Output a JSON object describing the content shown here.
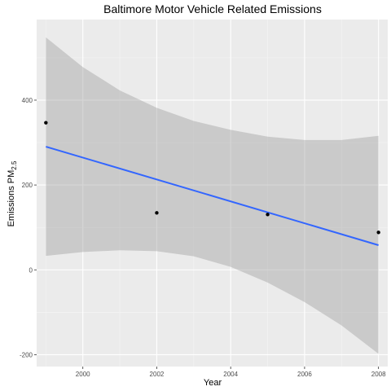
{
  "chart_data": {
    "type": "scatter",
    "title": "Baltimore Motor Vehicle Related Emissions",
    "xlabel": "Year",
    "ylabel": {
      "prefix": "Emissions PM",
      "subscript": "2.5"
    },
    "xlim": [
      1998.75,
      2008.25
    ],
    "ylim": [
      -228,
      590
    ],
    "x_ticks": [
      2000,
      2002,
      2004,
      2006,
      2008
    ],
    "y_ticks": [
      -200,
      0,
      200,
      400
    ],
    "grid": true,
    "legend": "none",
    "points": [
      {
        "x": 1999,
        "y": 346.8
      },
      {
        "x": 2002,
        "y": 134.3
      },
      {
        "x": 2005,
        "y": 130.4
      },
      {
        "x": 2008,
        "y": 88.3
      }
    ],
    "trend_line": {
      "method": "linear",
      "x": [
        1999,
        2008
      ],
      "y": [
        290.4,
        58.1
      ]
    },
    "confidence_band": [
      {
        "x": 1999,
        "lower": 33,
        "upper": 548
      },
      {
        "x": 2000,
        "lower": 42,
        "upper": 478
      },
      {
        "x": 2001,
        "lower": 46,
        "upper": 423
      },
      {
        "x": 2002,
        "lower": 44,
        "upper": 382
      },
      {
        "x": 2003,
        "lower": 32,
        "upper": 351
      },
      {
        "x": 2004,
        "lower": 7,
        "upper": 330
      },
      {
        "x": 2005,
        "lower": -30,
        "upper": 314
      },
      {
        "x": 2006,
        "lower": -76,
        "upper": 306
      },
      {
        "x": 2007,
        "lower": -131,
        "upper": 306
      },
      {
        "x": 2008,
        "lower": -198,
        "upper": 316
      }
    ],
    "colors": {
      "panel": "#ebebeb",
      "grid_major": "#ffffff",
      "grid_minor": "#f5f5f5",
      "points": "#000000",
      "line": "#3366ff",
      "band": "#999999"
    }
  }
}
